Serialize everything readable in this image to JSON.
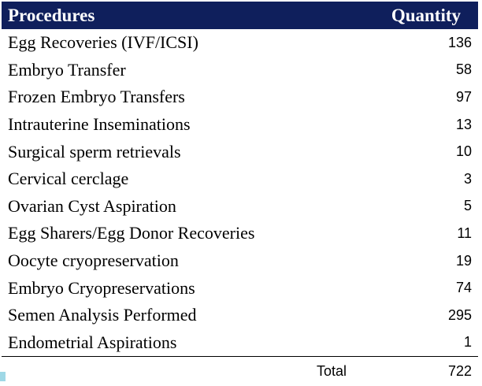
{
  "colors": {
    "header_bg": "#0f1f5c",
    "header_text": "#ffffff",
    "accent": "#9fd8e6"
  },
  "header": {
    "procedures_label": "Procedures",
    "quantity_label": "Quantity"
  },
  "rows": [
    {
      "procedure": "Egg Recoveries (IVF/ICSI)",
      "quantity": "136"
    },
    {
      "procedure": "Embryo Transfer",
      "quantity": "58"
    },
    {
      "procedure": "Frozen Embryo Transfers",
      "quantity": "97"
    },
    {
      "procedure": "Intrauterine Inseminations",
      "quantity": "13"
    },
    {
      "procedure": "Surgical sperm retrievals",
      "quantity": "10"
    },
    {
      "procedure": "Cervical cerclage",
      "quantity": "3"
    },
    {
      "procedure": "Ovarian Cyst Aspiration",
      "quantity": "5"
    },
    {
      "procedure": "Egg Sharers/Egg Donor Recoveries",
      "quantity": "11"
    },
    {
      "procedure": "Oocyte cryopreservation",
      "quantity": "19"
    },
    {
      "procedure": "Embryo Cryopreservations",
      "quantity": "74"
    },
    {
      "procedure": "Semen Analysis Performed",
      "quantity": "295"
    },
    {
      "procedure": "Endometrial Aspirations",
      "quantity": "1"
    }
  ],
  "total": {
    "label": "Total",
    "quantity": "722"
  }
}
